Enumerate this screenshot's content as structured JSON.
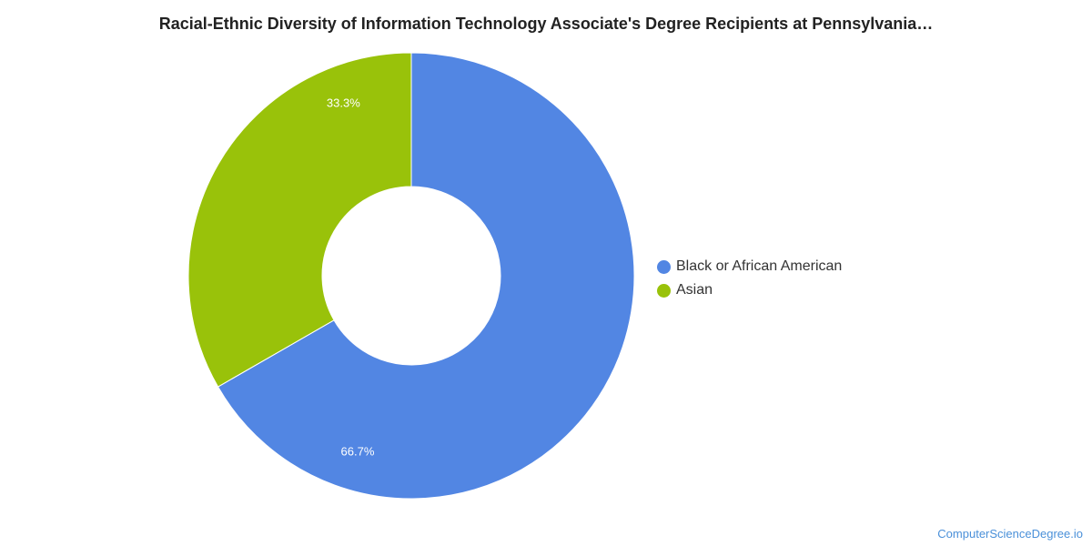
{
  "title": "Racial-Ethnic Diversity of Information Technology Associate's Degree Recipients at Pennsylvania…",
  "watermark": "ComputerScienceDegree.io",
  "chart_data": {
    "type": "pie",
    "donut": true,
    "title": "Racial-Ethnic Diversity of Information Technology Associate's Degree Recipients at Pennsylvania…",
    "legend_position": "right",
    "slices": [
      {
        "label": "Black or African American",
        "value": 66.7,
        "display": "66.7%",
        "color": "#5286e3"
      },
      {
        "label": "Asian",
        "value": 33.3,
        "display": "33.3%",
        "color": "#99c20a"
      }
    ]
  }
}
